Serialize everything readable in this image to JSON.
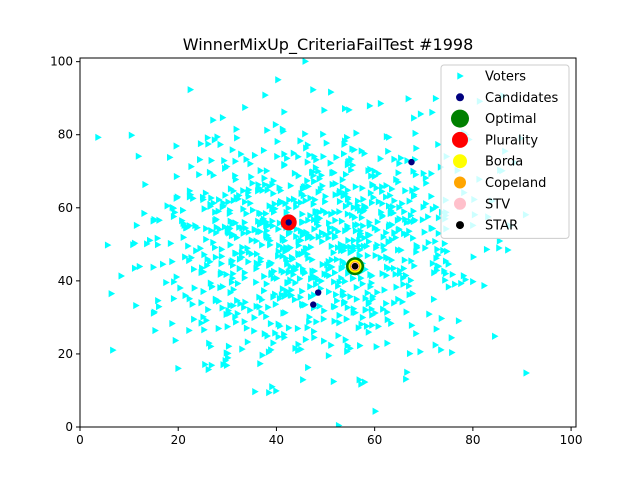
{
  "chart_data": {
    "type": "scatter",
    "title": "WinnerMixUp_CriteriaFailTest #1998",
    "xlabel": "",
    "ylabel": "",
    "xlim": [
      0,
      101
    ],
    "ylim": [
      0,
      101
    ],
    "x_ticks": [
      0,
      20,
      40,
      60,
      80,
      100
    ],
    "y_ticks": [
      0,
      20,
      40,
      60,
      80,
      100
    ],
    "grid": false,
    "legend_position": "top-right",
    "legend": [
      "Voters",
      "Candidates",
      "Optimal",
      "Plurality",
      "Borda",
      "Copeland",
      "STV",
      "STAR"
    ],
    "voter_distribution": {
      "count": 1000,
      "shape": "gaussian",
      "center": [
        48,
        50
      ],
      "spread": [
        17,
        17
      ],
      "range": [
        0,
        101
      ]
    },
    "series": [
      {
        "name": "Candidates",
        "color": "#00007f",
        "points": [
          [
            67.5,
            72.5
          ],
          [
            42.5,
            56.0
          ],
          [
            48.5,
            36.8
          ],
          [
            47.5,
            33.5
          ],
          [
            56.0,
            44.0
          ]
        ]
      },
      {
        "name": "Optimal",
        "color": "#008000",
        "points": [
          [
            56.0,
            44.0
          ]
        ]
      },
      {
        "name": "Plurality",
        "color": "#ff0000",
        "points": [
          [
            42.5,
            56.0
          ]
        ]
      },
      {
        "name": "Borda",
        "color": "#ffff00",
        "points": [
          [
            56.0,
            44.0
          ]
        ]
      },
      {
        "name": "Copeland",
        "color": "#ffa500",
        "points": [
          [
            56.0,
            44.0
          ]
        ]
      },
      {
        "name": "STV",
        "color": "#ffc0cb",
        "points": [
          [
            56.0,
            44.0
          ]
        ]
      },
      {
        "name": "STAR",
        "color": "#000000",
        "points": [
          [
            56.0,
            44.0
          ]
        ]
      }
    ],
    "voter_color": "#00ffff"
  }
}
